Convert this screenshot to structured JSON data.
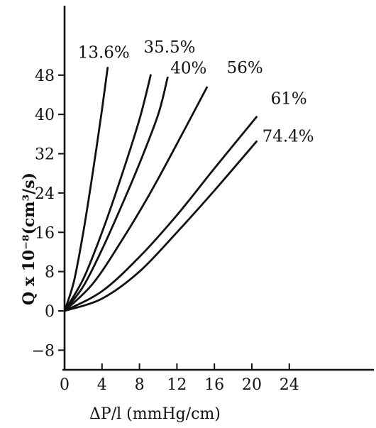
{
  "chart_data": {
    "type": "line",
    "xlabel": "ΔP/l (mmHg/cm)",
    "ylabel": "Q x 10⁻⁸(cm³/s)",
    "xlim": [
      0,
      24
    ],
    "ylim": [
      -8,
      56
    ],
    "xticks": [
      {
        "value": 0,
        "label": "0"
      },
      {
        "value": 4,
        "label": "4"
      },
      {
        "value": 8,
        "label": "8"
      },
      {
        "value": 12,
        "label": "12"
      },
      {
        "value": 16,
        "label": "16"
      },
      {
        "value": 20,
        "label": "20"
      },
      {
        "value": 24,
        "label": "24"
      }
    ],
    "yticks": [
      {
        "value": -8,
        "label": "−8"
      },
      {
        "value": 0,
        "label": "0"
      },
      {
        "value": 8,
        "label": "8"
      },
      {
        "value": 16,
        "label": "16"
      },
      {
        "value": 24,
        "label": "24"
      },
      {
        "value": 32,
        "label": "32"
      },
      {
        "value": 40,
        "label": "40"
      },
      {
        "value": 48,
        "label": "48"
      }
    ],
    "grid": false,
    "line_color": "#111111",
    "series": [
      {
        "name": "13.6%",
        "x": [
          0,
          1,
          2,
          3,
          4,
          4.6
        ],
        "y": [
          0,
          6,
          16,
          28,
          41,
          49.5
        ]
      },
      {
        "name": "35.5%",
        "x": [
          0,
          2,
          4,
          6,
          8,
          9.2
        ],
        "y": [
          0,
          6.5,
          16,
          27,
          39,
          48
        ]
      },
      {
        "name": "40%",
        "x": [
          0,
          2,
          4,
          6,
          8,
          10,
          11
        ],
        "y": [
          0,
          5,
          12.5,
          21,
          30,
          40,
          47.5
        ]
      },
      {
        "name": "56%",
        "x": [
          0,
          3,
          6,
          9,
          12,
          15.2
        ],
        "y": [
          0,
          5.5,
          14,
          23.5,
          34,
          45.5
        ]
      },
      {
        "name": "61%",
        "x": [
          0,
          4,
          8,
          12,
          16,
          20.5
        ],
        "y": [
          0,
          4,
          11,
          19.5,
          29,
          39.5
        ]
      },
      {
        "name": "74.4%",
        "x": [
          0,
          4,
          8,
          12,
          16,
          20.5
        ],
        "y": [
          0,
          2.5,
          8,
          16,
          24.5,
          34.5
        ]
      }
    ]
  }
}
